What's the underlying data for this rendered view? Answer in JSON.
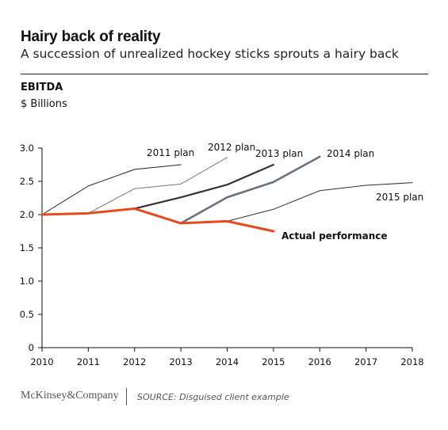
{
  "header": {
    "title": "Hairy back of reality",
    "subtitle": "A succession of unrealized hockey sticks sprouts a hairy back"
  },
  "metric": "EBITDA",
  "unit": "$ Billions",
  "footer": {
    "brand": "McKinsey&Company",
    "source": "SOURCE: Disguised client example"
  },
  "chart_data": {
    "type": "line",
    "x": [
      2010,
      2011,
      2012,
      2013,
      2014,
      2015,
      2016,
      2017,
      2018
    ],
    "xticks": [
      "2010",
      "2011",
      "2012",
      "2013",
      "2014",
      "2015",
      "2016",
      "2017",
      "2018"
    ],
    "yticks": [
      "0",
      "0.5",
      "1.0",
      "1.5",
      "2.0",
      "2.5",
      "3.0"
    ],
    "ylim": [
      0,
      3.0
    ],
    "grid": false,
    "series": [
      {
        "name": "2011 plan",
        "x": [
          2010,
          2011,
          2012,
          2013
        ],
        "values": [
          2.0,
          2.43,
          2.68,
          2.75
        ],
        "color": "#222222"
      },
      {
        "name": "2012 plan",
        "x": [
          2011,
          2012,
          2013,
          2014
        ],
        "values": [
          2.02,
          2.39,
          2.46,
          2.86
        ],
        "color": "#777777"
      },
      {
        "name": "2013 plan",
        "x": [
          2012,
          2013,
          2014,
          2015
        ],
        "values": [
          2.09,
          2.26,
          2.45,
          2.75
        ],
        "color": "#333333"
      },
      {
        "name": "2014 plan",
        "x": [
          2013,
          2014,
          2015,
          2016
        ],
        "values": [
          1.87,
          2.26,
          2.49,
          2.87
        ],
        "color": "#6a737a"
      },
      {
        "name": "2015 plan",
        "x": [
          2014,
          2015,
          2016,
          2017,
          2018
        ],
        "values": [
          1.9,
          2.08,
          2.36,
          2.44,
          2.48
        ],
        "color": "#333333"
      },
      {
        "name": "Actual performance",
        "x": [
          2010,
          2011,
          2012,
          2013,
          2014,
          2015
        ],
        "values": [
          2.0,
          2.02,
          2.09,
          1.87,
          1.9,
          1.75
        ],
        "color": "#e8491d"
      }
    ]
  }
}
